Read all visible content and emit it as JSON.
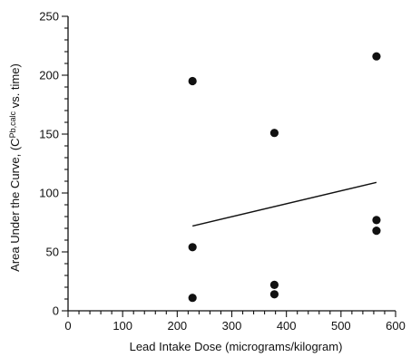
{
  "chart_data": {
    "type": "scatter",
    "xlabel": "Lead Intake Dose (micrograms/kilogram)",
    "ylabel": {
      "prefix": "Area Under the Curve, (C",
      "subscript": "Pb,calc",
      "suffix": " vs. time)"
    },
    "xlim": [
      0,
      600
    ],
    "ylim": [
      0,
      250
    ],
    "xticks": [
      0,
      100,
      200,
      300,
      400,
      500,
      600
    ],
    "yticks": [
      0,
      50,
      100,
      150,
      200,
      250
    ],
    "grid": false,
    "points": [
      {
        "x": 228,
        "y": 11
      },
      {
        "x": 228,
        "y": 54
      },
      {
        "x": 228,
        "y": 195
      },
      {
        "x": 378,
        "y": 14
      },
      {
        "x": 378,
        "y": 22
      },
      {
        "x": 378,
        "y": 151
      },
      {
        "x": 565,
        "y": 68
      },
      {
        "x": 565,
        "y": 77
      },
      {
        "x": 565,
        "y": 216
      }
    ],
    "trendline": {
      "x": [
        228,
        565
      ],
      "y": [
        72,
        109
      ]
    }
  }
}
